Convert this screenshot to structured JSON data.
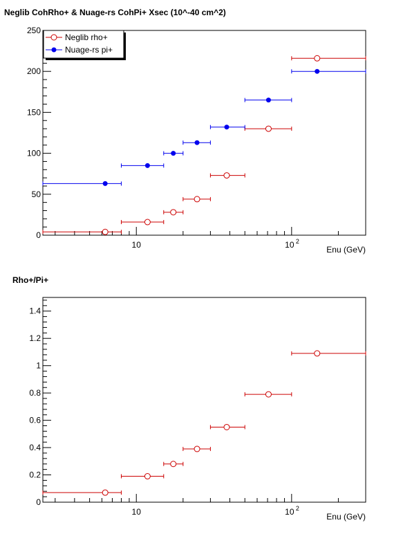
{
  "chart_data": [
    {
      "type": "scatter",
      "title": "Neglib CohRho+ & Nuage-rs CohPi+ Xsec (10^-40 cm^2)",
      "xlabel": "Enu (GeV)",
      "ylabel": "",
      "xscale": "log",
      "xlim": [
        2.5,
        300
      ],
      "ylim": [
        0,
        250
      ],
      "yticks": [
        0,
        50,
        100,
        150,
        200,
        250
      ],
      "xtick_labels": [
        {
          "value": 10,
          "label": "10",
          "sup": ""
        },
        {
          "value": 100,
          "label": "10",
          "sup": "2"
        }
      ],
      "legend_position": "top-left",
      "grid": false,
      "series": [
        {
          "name": "Neglib rho+",
          "marker": "open-circle",
          "color": "#cc0000",
          "points": [
            {
              "x": 6.3,
              "xlo": 2.5,
              "xhi": 8,
              "y": 4
            },
            {
              "x": 11.8,
              "xlo": 8,
              "xhi": 15,
              "y": 16
            },
            {
              "x": 17.3,
              "xlo": 15,
              "xhi": 20,
              "y": 28
            },
            {
              "x": 24.6,
              "xlo": 20,
              "xhi": 30,
              "y": 44
            },
            {
              "x": 38.2,
              "xlo": 30,
              "xhi": 50,
              "y": 73
            },
            {
              "x": 71,
              "xlo": 50,
              "xhi": 100,
              "y": 130
            },
            {
              "x": 146,
              "xlo": 100,
              "xhi": 300,
              "y": 216
            }
          ]
        },
        {
          "name": "Nuage-rs pi+",
          "marker": "filled-circle",
          "color": "#0000ee",
          "points": [
            {
              "x": 6.3,
              "xlo": 2.5,
              "xhi": 8,
              "y": 63
            },
            {
              "x": 11.8,
              "xlo": 8,
              "xhi": 15,
              "y": 85
            },
            {
              "x": 17.3,
              "xlo": 15,
              "xhi": 20,
              "y": 100
            },
            {
              "x": 24.6,
              "xlo": 20,
              "xhi": 30,
              "y": 113
            },
            {
              "x": 38.2,
              "xlo": 30,
              "xhi": 50,
              "y": 132
            },
            {
              "x": 71,
              "xlo": 50,
              "xhi": 100,
              "y": 165
            },
            {
              "x": 146,
              "xlo": 100,
              "xhi": 300,
              "y": 200
            }
          ]
        }
      ]
    },
    {
      "type": "scatter",
      "title": "Rho+/Pi+",
      "xlabel": "Enu (GeV)",
      "ylabel": "",
      "xscale": "log",
      "xlim": [
        2.5,
        300
      ],
      "ylim": [
        0,
        1.5
      ],
      "yticks": [
        "0",
        "0.2",
        "0.4",
        "0.6",
        "0.8",
        "1",
        "1.2",
        "1.4"
      ],
      "xtick_labels": [
        {
          "value": 10,
          "label": "10",
          "sup": ""
        },
        {
          "value": 100,
          "label": "10",
          "sup": "2"
        }
      ],
      "grid": false,
      "series": [
        {
          "name": "",
          "marker": "open-circle",
          "color": "#cc0000",
          "points": [
            {
              "x": 6.3,
              "xlo": 2.5,
              "xhi": 8,
              "y": 0.07
            },
            {
              "x": 11.8,
              "xlo": 8,
              "xhi": 15,
              "y": 0.19
            },
            {
              "x": 17.3,
              "xlo": 15,
              "xhi": 20,
              "y": 0.28
            },
            {
              "x": 24.6,
              "xlo": 20,
              "xhi": 30,
              "y": 0.39
            },
            {
              "x": 38.2,
              "xlo": 30,
              "xhi": 50,
              "y": 0.55
            },
            {
              "x": 71,
              "xlo": 50,
              "xhi": 100,
              "y": 0.79
            },
            {
              "x": 146,
              "xlo": 100,
              "xhi": 300,
              "y": 1.09
            }
          ]
        }
      ]
    }
  ]
}
